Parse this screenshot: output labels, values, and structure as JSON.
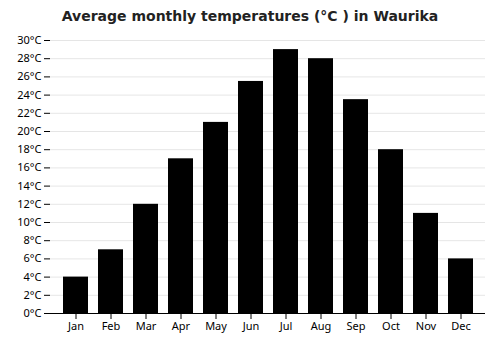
{
  "chart_data": {
    "type": "bar",
    "title": "Average monthly temperatures (°C ) in Waurika",
    "categories": [
      "Jan",
      "Feb",
      "Mar",
      "Apr",
      "May",
      "Jun",
      "Jul",
      "Aug",
      "Sep",
      "Oct",
      "Nov",
      "Dec"
    ],
    "values": [
      4.0,
      7.0,
      12.0,
      17.0,
      21.0,
      25.5,
      29.0,
      28.0,
      23.5,
      18.0,
      11.0,
      6.0
    ],
    "ylim": [
      0,
      30
    ],
    "yticks": [
      {
        "value": 0,
        "label": "0°C"
      },
      {
        "value": 2,
        "label": "2°C"
      },
      {
        "value": 4,
        "label": "4°C"
      },
      {
        "value": 6,
        "label": "6°C"
      },
      {
        "value": 8,
        "label": "8°C"
      },
      {
        "value": 10,
        "label": "10°C"
      },
      {
        "value": 12,
        "label": "12°C"
      },
      {
        "value": 14,
        "label": "14°C"
      },
      {
        "value": 16,
        "label": "16°C"
      },
      {
        "value": 18,
        "label": "18°C"
      },
      {
        "value": 20,
        "label": "20°C"
      },
      {
        "value": 22,
        "label": "22°C"
      },
      {
        "value": 24,
        "label": "24°C"
      },
      {
        "value": 26,
        "label": "26°C"
      },
      {
        "value": 28,
        "label": "28°C"
      },
      {
        "value": 30,
        "label": "30°C"
      }
    ],
    "grid": true
  }
}
